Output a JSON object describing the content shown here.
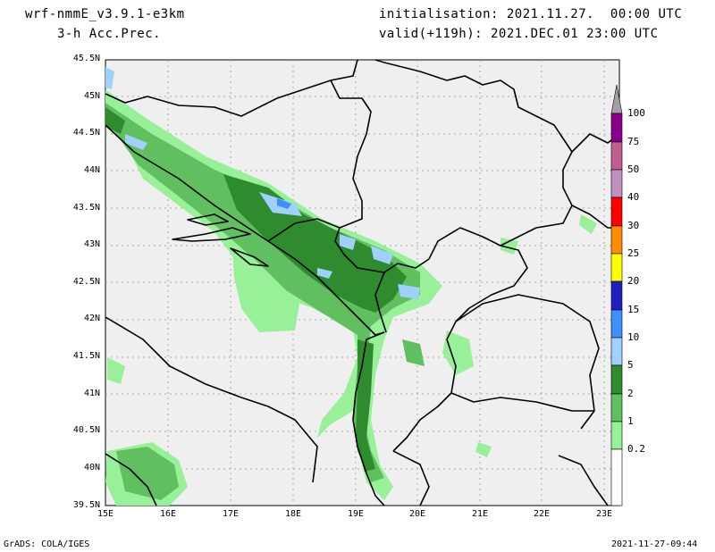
{
  "header": {
    "model": "wrf-nmmE_v3.9.1-e3km",
    "field": "3-h Acc.Prec.",
    "init": "initialisation: 2021.11.27.  00:00 UTC",
    "valid": "valid(+119h): 2021.DEC.01 23:00 UTC"
  },
  "axes": {
    "lat_labels": [
      "45.5N",
      "45N",
      "44.5N",
      "44N",
      "43.5N",
      "43N",
      "42.5N",
      "42N",
      "41.5N",
      "41N",
      "40.5N",
      "40N",
      "39.5N"
    ],
    "lon_labels": [
      "15E",
      "16E",
      "17E",
      "18E",
      "19E",
      "20E",
      "21E",
      "22E",
      "23E"
    ],
    "lat_range": [
      39.5,
      45.5
    ],
    "lon_range": [
      15,
      23.25
    ]
  },
  "colorbar": {
    "labels": [
      "100",
      "75",
      "50",
      "40",
      "30",
      "25",
      "20",
      "15",
      "10",
      "5",
      "2",
      "1",
      "0.2"
    ],
    "colors": [
      "#a0a0a0",
      "#8b008b",
      "#c0608f",
      "#c090c0",
      "#ff0000",
      "#ff8c00",
      "#ffff00",
      "#2020c0",
      "#3f8fff",
      "#9fd0ff",
      "#2e8b2e",
      "#60c060",
      "#98f098",
      "#ffffff"
    ]
  },
  "colors": {
    "land": "#efefef",
    "grid": "#999999",
    "border": "#000000"
  },
  "footer": {
    "left": "GrADS: COLA/IGES",
    "right": "2021-11-27-09:44"
  }
}
